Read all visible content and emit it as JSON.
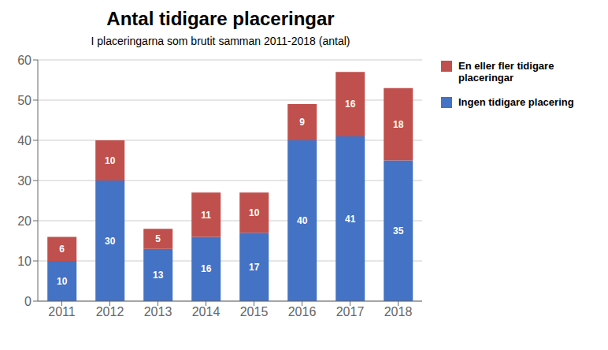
{
  "chart_data": {
    "type": "bar",
    "title": "Antal tidigare placeringar",
    "subtitle": "I placeringarna som brutit samman 2011-2018 (antal)",
    "categories": [
      "2011",
      "2012",
      "2013",
      "2014",
      "2015",
      "2016",
      "2017",
      "2018"
    ],
    "series": [
      {
        "name": "Ingen tidigare placering",
        "color": "#4472C4",
        "values": [
          10,
          30,
          13,
          16,
          17,
          40,
          41,
          35
        ]
      },
      {
        "name": "En eller fler tidigare\nplaceringar",
        "color": "#C0504D",
        "values": [
          6,
          10,
          5,
          11,
          10,
          9,
          16,
          18
        ]
      }
    ],
    "stacked": true,
    "data_labels": true,
    "ylim": [
      0,
      60
    ],
    "yticks": [
      0,
      10,
      20,
      30,
      40,
      50,
      60
    ],
    "grid": true,
    "legend": "right"
  }
}
